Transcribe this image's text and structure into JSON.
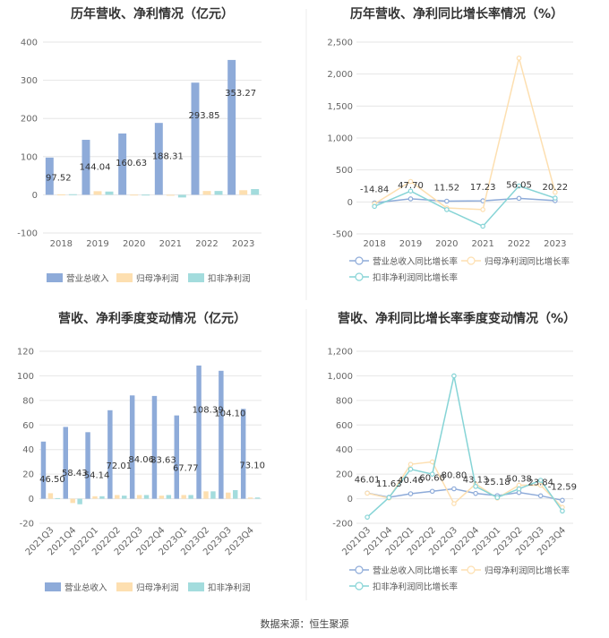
{
  "source": "数据来源：恒生聚源",
  "colors": {
    "revenue": "#8eabd9",
    "profit": "#fddfb0",
    "deducted": "#a3dcdd",
    "line_revenue": "#8eabd9",
    "line_profit": "#fddfb0",
    "line_deducted": "#86d4d6"
  },
  "chart_data": [
    {
      "type": "bar",
      "title": "历年营收、净利情况（亿元）",
      "categories": [
        "2018",
        "2019",
        "2020",
        "2021",
        "2022",
        "2023"
      ],
      "yticks": [
        -100,
        0,
        100,
        200,
        300,
        400
      ],
      "ylim": [
        -100,
        400
      ],
      "series": [
        {
          "name": "营业总收入",
          "values": [
            97.52,
            144.04,
            160.63,
            188.31,
            293.85,
            353.27
          ]
        },
        {
          "name": "归母净利润",
          "values": [
            1.0,
            9.5,
            0.5,
            -2.0,
            10.0,
            12.0
          ]
        },
        {
          "name": "扣非净利润",
          "values": [
            1.5,
            8.5,
            0.5,
            -7.0,
            10.0,
            15.0
          ]
        }
      ],
      "labels": [
        "97.52",
        "144.04",
        "160.63",
        "188.31",
        "293.85",
        "353.27"
      ]
    },
    {
      "type": "line",
      "title": "历年营收、净利同比增长率情况（%）",
      "categories": [
        "2018",
        "2019",
        "2020",
        "2021",
        "2022",
        "2023"
      ],
      "yticks": [
        -500,
        0,
        500,
        1000,
        1500,
        2000,
        2500
      ],
      "ylim": [
        -500,
        2500
      ],
      "series": [
        {
          "name": "营业总收入同比增长率",
          "values": [
            -14.84,
            47.7,
            11.52,
            17.23,
            56.05,
            20.22
          ]
        },
        {
          "name": "归母净利润同比增长率",
          "values": [
            -30,
            320,
            -95,
            -120,
            2250,
            150
          ]
        },
        {
          "name": "扣非净利润同比增长率",
          "values": [
            -70,
            170,
            -120,
            -380,
            250,
            60
          ]
        }
      ],
      "labels": [
        "-14.84",
        "47.70",
        "11.52",
        "17.23",
        "56.05",
        "20.22"
      ]
    },
    {
      "type": "bar",
      "title": "营收、净利季度变动情况（亿元）",
      "categories": [
        "2021Q3",
        "2021Q4",
        "2022Q1",
        "2022Q2",
        "2022Q3",
        "2022Q4",
        "2023Q1",
        "2023Q2",
        "2023Q3",
        "2023Q4"
      ],
      "yticks": [
        -20,
        0,
        20,
        40,
        60,
        80,
        100,
        120
      ],
      "ylim": [
        -20,
        120
      ],
      "series": [
        {
          "name": "营业总收入",
          "values": [
            46.5,
            58.43,
            54.14,
            72.01,
            84.06,
            83.63,
            67.77,
            108.39,
            104.1,
            73.1
          ]
        },
        {
          "name": "归母净利润",
          "values": [
            4.5,
            -3.5,
            2.0,
            3.0,
            3.0,
            2.5,
            3.0,
            6.0,
            5.0,
            1.0
          ]
        },
        {
          "name": "扣非净利润",
          "values": [
            0.5,
            -4.5,
            2.0,
            2.5,
            3.0,
            3.0,
            3.0,
            6.0,
            7.0,
            1.0
          ]
        }
      ],
      "labels": [
        "46.50",
        "58.43",
        "54.14",
        "72.01",
        "84.06",
        "83.63",
        "67.77",
        "108.39",
        "104.10",
        "73.10"
      ]
    },
    {
      "type": "line",
      "title": "营收、净利同比增长率季度变动情况（%）",
      "categories": [
        "2021Q3",
        "2021Q4",
        "2022Q1",
        "2022Q2",
        "2022Q3",
        "2022Q4",
        "2023Q1",
        "2023Q2",
        "2023Q3",
        "2023Q4"
      ],
      "yticks": [
        -200,
        0,
        200,
        400,
        600,
        800,
        1000,
        1200
      ],
      "ylim": [
        -200,
        1200
      ],
      "series": [
        {
          "name": "营业总收入同比增长率",
          "values": [
            46.01,
            11.63,
            40.46,
            60.6,
            80.8,
            43.13,
            25.18,
            50.38,
            23.84,
            -12.59
          ]
        },
        {
          "name": "归母净利润同比增长率",
          "values": [
            45,
            5,
            280,
            300,
            -40,
            120,
            5,
            110,
            110,
            -70
          ]
        },
        {
          "name": "扣非净利润同比增长率",
          "values": [
            -150,
            10,
            240,
            200,
            1000,
            100,
            10,
            80,
            150,
            -100
          ]
        }
      ],
      "labels": [
        "46.01",
        "11.63",
        "40.46",
        "60.60",
        "80.80",
        "43.13",
        "25.18",
        "50.38",
        "23.84",
        "-12.59"
      ]
    }
  ]
}
